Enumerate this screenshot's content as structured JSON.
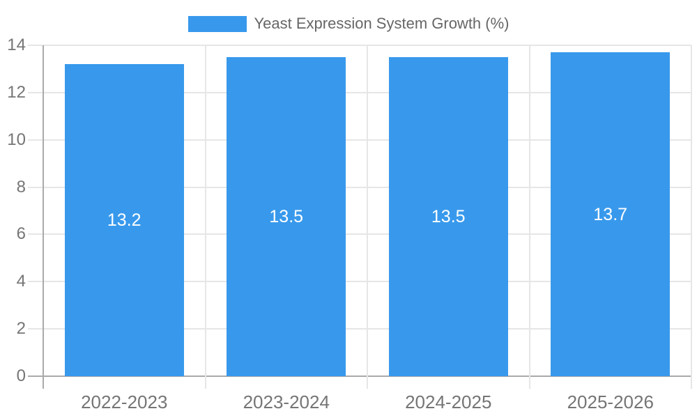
{
  "legend": {
    "label": "Yeast Expression System Growth (%)"
  },
  "chart_data": {
    "type": "bar",
    "title": "Yeast Expression System Growth (%)",
    "categories": [
      "2022-2023",
      "2023-2024",
      "2024-2025",
      "2025-2026"
    ],
    "values": [
      13.2,
      13.5,
      13.5,
      13.7
    ],
    "value_labels": [
      "13.2",
      "13.5",
      "13.5",
      "13.7"
    ],
    "xlabel": "",
    "ylabel": "",
    "ylim": [
      0,
      14
    ],
    "yticks": [
      0,
      2,
      4,
      6,
      8,
      10,
      12,
      14
    ],
    "grid": true,
    "legend_position": "top-center"
  },
  "colors": {
    "background": "#ffffff",
    "bar": "#3899ec",
    "grid": "#e6e6e6",
    "axis": "#aaaaaa",
    "tick_text": "#757575",
    "legend_text": "#666666",
    "value_text": "#ffffff"
  }
}
